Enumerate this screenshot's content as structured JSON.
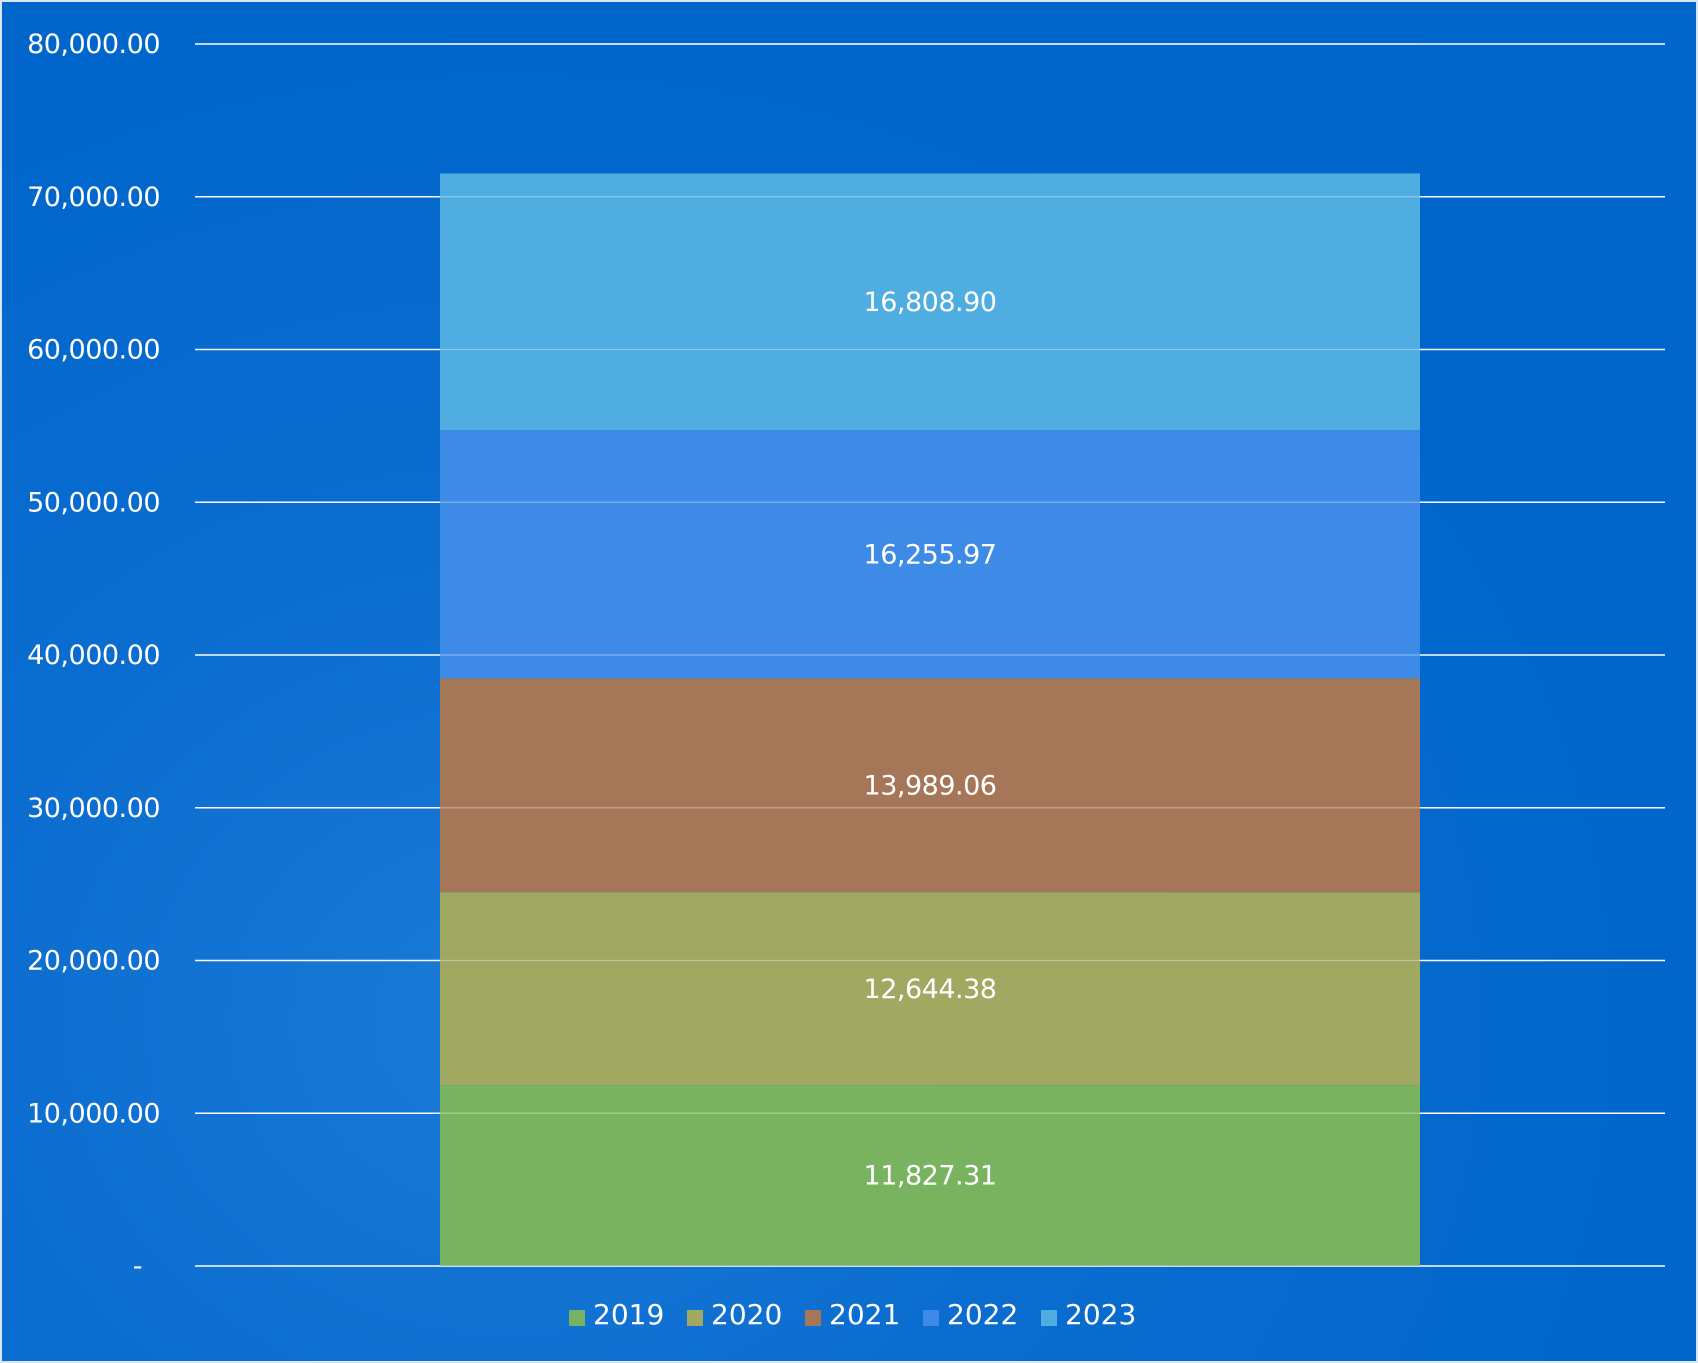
{
  "chart_data": {
    "type": "bar",
    "stacked": true,
    "categories": [
      ""
    ],
    "series": [
      {
        "name": "2019",
        "values": [
          11827.31
        ],
        "label": "11,827.31",
        "color": "#7ab360"
      },
      {
        "name": "2020",
        "values": [
          12644.38
        ],
        "label": "12,644.38",
        "color": "#a0a862"
      },
      {
        "name": "2021",
        "values": [
          13989.06
        ],
        "label": "13,989.06",
        "color": "#a67659"
      },
      {
        "name": "2022",
        "values": [
          16255.97
        ],
        "label": "16,255.97",
        "color": "#3d8be6"
      },
      {
        "name": "2023",
        "values": [
          16808.9
        ],
        "label": "16,808.90",
        "color": "#4fade2"
      }
    ],
    "ylim": [
      0,
      80000
    ],
    "yticks": [
      {
        "value": 0,
        "label": "-"
      },
      {
        "value": 10000,
        "label": "10,000.00"
      },
      {
        "value": 20000,
        "label": "20,000.00"
      },
      {
        "value": 30000,
        "label": "30,000.00"
      },
      {
        "value": 40000,
        "label": "40,000.00"
      },
      {
        "value": 50000,
        "label": "50,000.00"
      },
      {
        "value": 60000,
        "label": "60,000.00"
      },
      {
        "value": 70000,
        "label": "70,000.00"
      },
      {
        "value": 80000,
        "label": "80,000.00"
      }
    ],
    "grid": true,
    "legend": "bottom",
    "background_color": "#0066cc",
    "gridline_color": "#ffffff"
  }
}
